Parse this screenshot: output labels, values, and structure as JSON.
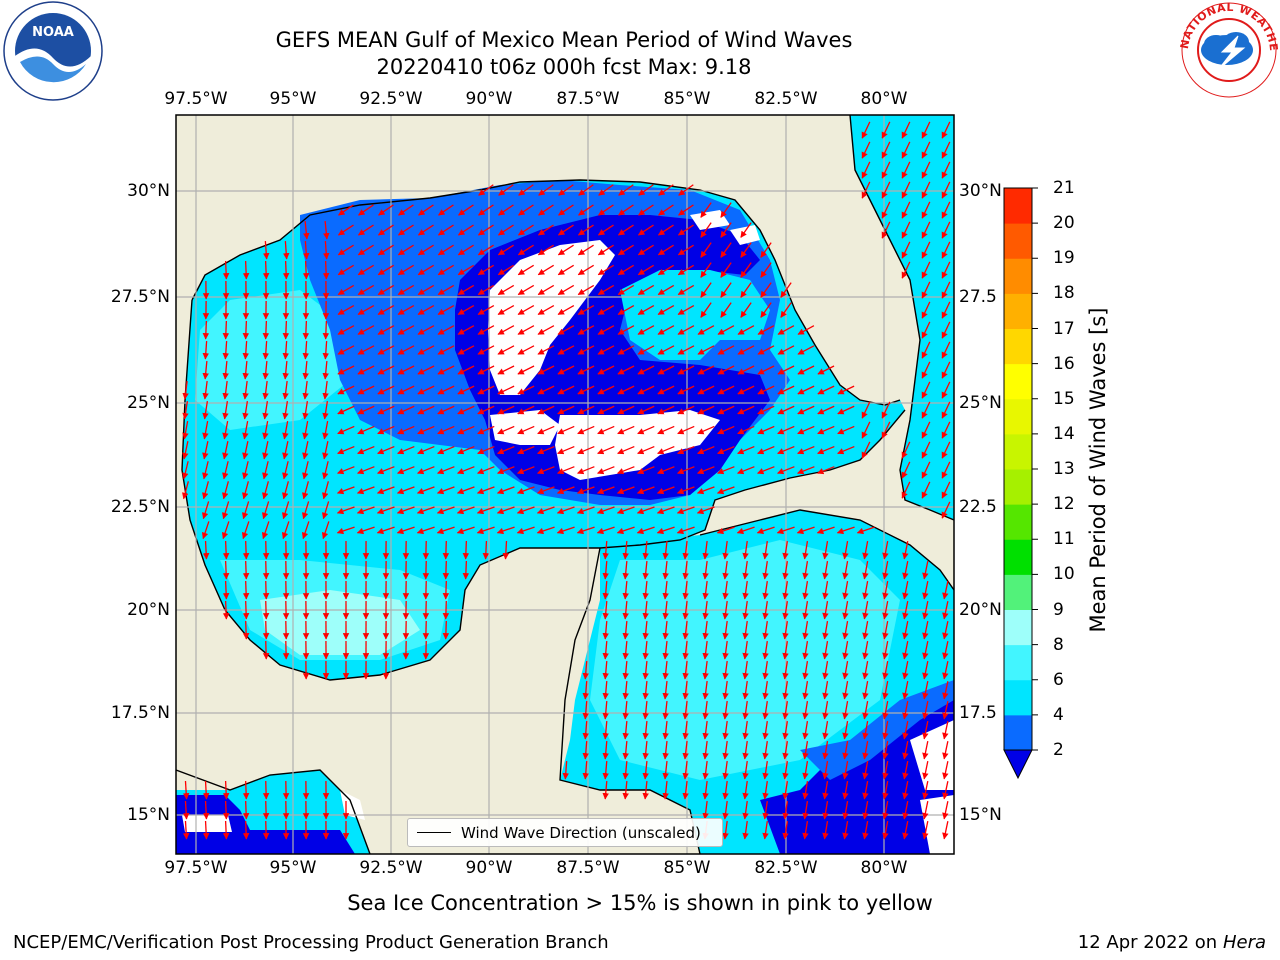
{
  "title": {
    "line1": "GEFS MEAN Gulf of Mexico Mean Period of Wind Waves",
    "line2": "20220410 t06z 000h fcst   Max: 9.18"
  },
  "logos": {
    "left": {
      "icon": "noaa-logo",
      "text": "NOAA"
    },
    "right": {
      "icon": "nws-logo",
      "text": "NATIONAL WEATHER SERVICE"
    }
  },
  "map": {
    "lon_ticks": [
      "97.5°W",
      "95°W",
      "92.5°W",
      "90°W",
      "87.5°W",
      "85°W",
      "82.5°W",
      "80°W"
    ],
    "lat_ticks_left": [
      "30°N",
      "27.5°N",
      "25°N",
      "22.5°N",
      "20°N",
      "17.5°N",
      "15°N"
    ],
    "lat_ticks_right": [
      "30°N",
      "27.5",
      "25°N",
      "22.5",
      "20°N",
      "17.5",
      "15°N"
    ],
    "lon_range": [
      -98,
      -78
    ],
    "lat_range": [
      14,
      31.5
    ],
    "grid": true,
    "colors": {
      "land": "#efedda",
      "coast": "#000000",
      "arrows": "#ff0000",
      "grid": "#b0b0b0"
    }
  },
  "legend": {
    "label": "Wind Wave Direction (unscaled)",
    "placement": "lower-center"
  },
  "colorbar": {
    "label": "Mean Period of Wind Waves [s]",
    "ticks": [
      "2",
      "4",
      "6",
      "8",
      "9",
      "10",
      "11",
      "12",
      "13",
      "14",
      "15",
      "16",
      "17",
      "18",
      "19",
      "20",
      "21"
    ],
    "colors": [
      "#0a6bff",
      "#00e5ff",
      "#42f5ff",
      "#9efffa",
      "#52f27a",
      "#00e000",
      "#55e600",
      "#a6f000",
      "#c8f500",
      "#e8f700",
      "#ffff00",
      "#ffd700",
      "#ffb000",
      "#ff8c00",
      "#ff5a00",
      "#ff2a00"
    ],
    "under_color": "#0000e6"
  },
  "subtitle": "Sea Ice Concentration > 15% is shown in pink to yellow",
  "footer": {
    "left": "NCEP/EMC/Verification Post Processing Product Generation Branch",
    "right_prefix": "12 Apr 2022 on ",
    "right_host": "Hera"
  }
}
